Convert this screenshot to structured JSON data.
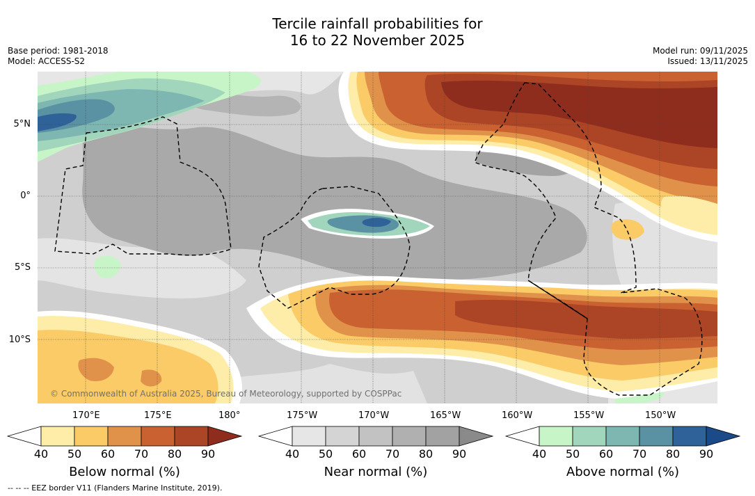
{
  "title": {
    "line1": "Tercile rainfall probabilities for",
    "line2": "16 to 22 November 2025"
  },
  "meta": {
    "base_period": "Base period: 1981-2018",
    "model": "Model: ACCESS-S2",
    "model_run": "Model run: 09/11/2025",
    "issued": "Issued: 13/11/2025"
  },
  "map": {
    "lat_labels": [
      "5°N",
      "0°",
      "5°S",
      "10°S"
    ],
    "lon_labels": [
      "170°E",
      "175°E",
      "180°",
      "175°W",
      "170°W",
      "165°W",
      "160°W",
      "155°W",
      "150°W"
    ],
    "credit": "© Commonwealth of Australia 2025, Bureau of Meteorology, supported by COSPPac"
  },
  "colorbars": [
    {
      "title": "Below normal (%)",
      "ticks": [
        "40",
        "50",
        "60",
        "70",
        "80",
        "90"
      ],
      "colors": [
        "#ffffff",
        "#fdeda8",
        "#fbcb68",
        "#e1924a",
        "#c96131",
        "#ac4426",
        "#8e2d1d"
      ]
    },
    {
      "title": "Near normal (%)",
      "ticks": [
        "40",
        "50",
        "60",
        "70",
        "80",
        "90"
      ],
      "colors": [
        "#ffffff",
        "#e6e6e6",
        "#d4d4d4",
        "#c2c2c2",
        "#b0b0b0",
        "#a2a2a2",
        "#8a8a8a"
      ]
    },
    {
      "title": "Above normal (%)",
      "ticks": [
        "40",
        "50",
        "60",
        "70",
        "80",
        "90"
      ],
      "colors": [
        "#ffffff",
        "#c8f5c8",
        "#a1d6bd",
        "#7eb7b1",
        "#5a91a3",
        "#2f6298",
        "#1a4a88"
      ]
    }
  ],
  "footnote": "-- -- -- EEZ border V11 (Flanders Marine Institute, 2019)."
}
